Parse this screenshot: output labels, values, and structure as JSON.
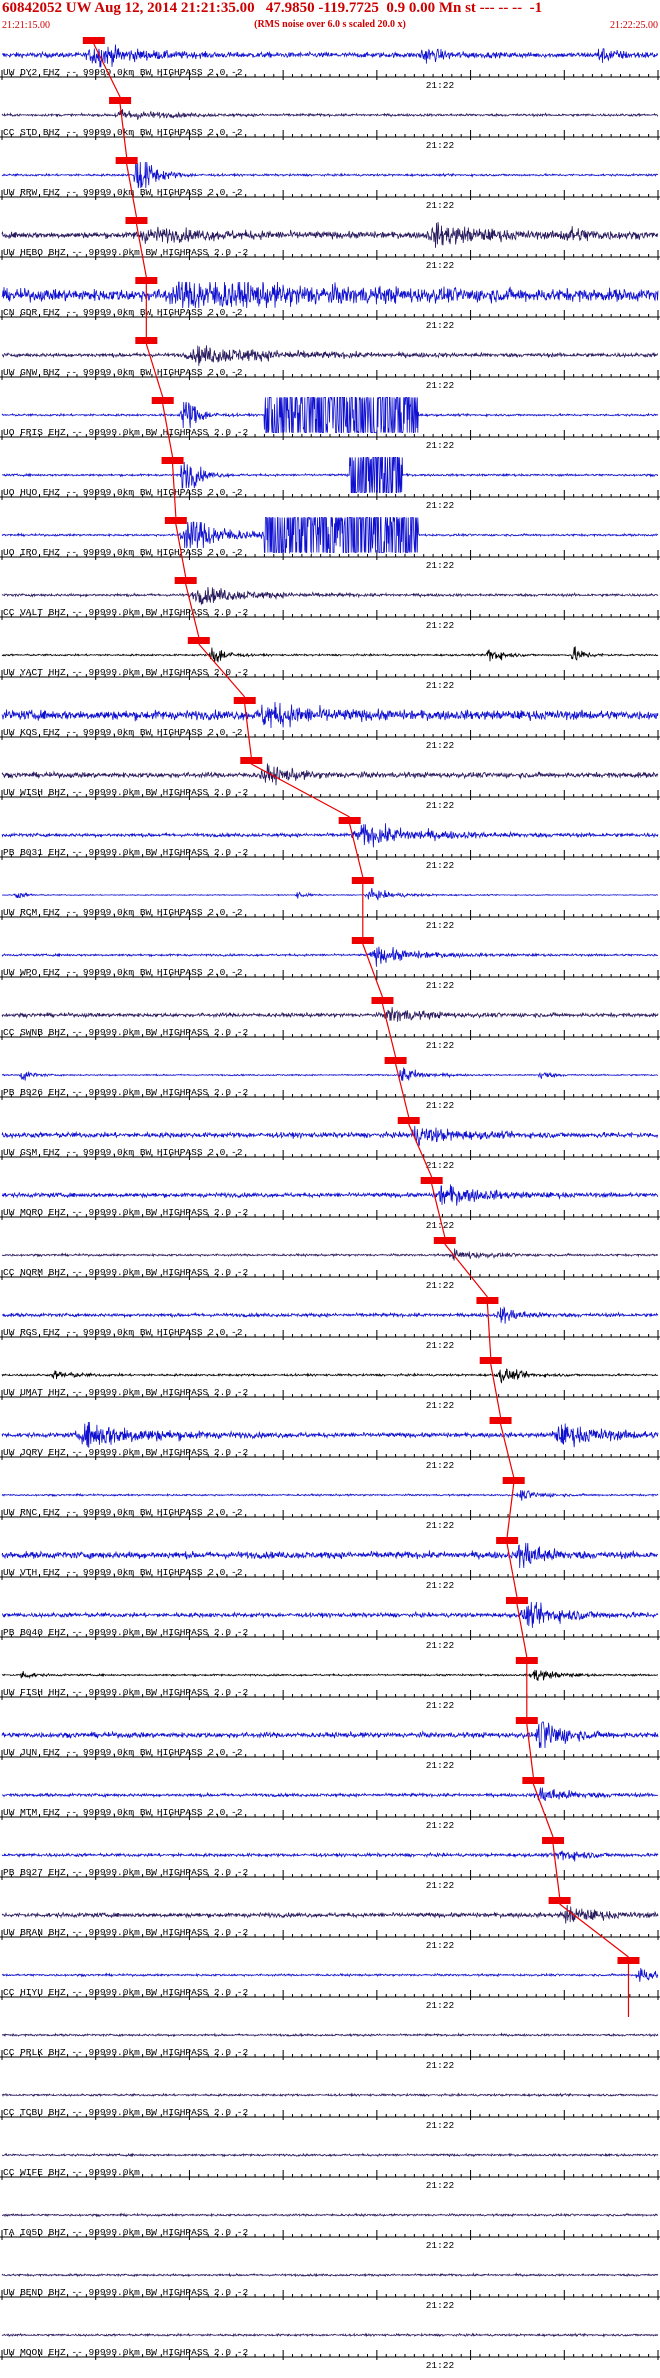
{
  "header": {
    "title": "60842052 UW Aug 12, 2014 21:21:35.00   47.9850 -119.7725  0.9 0.00 Mn st --- -- --  -1",
    "subtitle": "(RMS noise over 6.0 s scaled 20.0 x)",
    "start_time": "21:21:15.00",
    "end_time": "21:22:25.00"
  },
  "chart_data": {
    "type": "seismogram",
    "time_range": [
      "21:21:15.00",
      "21:22:25.00"
    ],
    "mid_tick_label": "21:22",
    "traces": [
      {
        "label": "UW DY2 EHZ -- 99999.0km BW  HIGHPASS  2.0 -2",
        "color": "#1010d0",
        "amp": 0.3,
        "events": [
          [
            0.14,
            0.04,
            1.3
          ],
          [
            0.64,
            0.02,
            0.9
          ],
          [
            0.91,
            0.02,
            0.8
          ]
        ],
        "pick": 0.14
      },
      {
        "label": "CC STD BHZ -- 99999.0km BW  HIGHPASS  2.0 -2",
        "color": "#2a1a5e",
        "amp": 0.14,
        "events": [
          [
            0.18,
            0.04,
            0.6
          ]
        ],
        "pick": 0.18
      },
      {
        "label": "UW RRW EHZ -- 99999.0km BW  HIGHPASS  2.0 -2",
        "color": "#1010d0",
        "amp": 0.12,
        "events": [
          [
            0.205,
            0.015,
            3.5
          ]
        ],
        "pick": 0.19
      },
      {
        "label": "UW HEBO BHZ -- 99999.0km BW  HIGHPASS  2.0 -2",
        "color": "#2a1a5e",
        "amp": 0.35,
        "events": [
          [
            0.22,
            0.08,
            0.7
          ],
          [
            0.66,
            0.05,
            1.2
          ],
          [
            0.86,
            0.03,
            0.8
          ]
        ],
        "pick": 0.205
      },
      {
        "label": "CN GDR EHZ -- 99999.0km BW  HIGHPASS  2.0 -2",
        "color": "#1010d0",
        "amp": 0.7,
        "events": [
          [
            0.28,
            0.12,
            1.6
          ]
        ],
        "pick": 0.22
      },
      {
        "label": "UW GNW BHZ -- 99999.0km BW  HIGHPASS  2.0 -2",
        "color": "#2a1a5e",
        "amp": 0.22,
        "events": [
          [
            0.3,
            0.08,
            1.0
          ]
        ],
        "pick": 0.22
      },
      {
        "label": "UO FRIS EHZ -- 99999.0km BW  HIGHPASS  2.0 -2",
        "color": "#1010d0",
        "amp": 0.12,
        "events": [
          [
            0.275,
            0.012,
            3.5
          ]
        ],
        "pick": 0.245,
        "clip": [
          0.4,
          0.635
        ]
      },
      {
        "label": "UO HUO EHZ -- 99999.0km BW  HIGHPASS  2.0 -2",
        "color": "#1010d0",
        "amp": 0.12,
        "events": [
          [
            0.275,
            0.012,
            3.5
          ]
        ],
        "pick": 0.26,
        "clip": [
          0.53,
          0.61
        ]
      },
      {
        "label": "UO IRO EHZ -- 99999.0km BW  HIGHPASS  2.0 -2",
        "color": "#1010d0",
        "amp": 0.12,
        "events": [
          [
            0.28,
            0.03,
            3.0
          ]
        ],
        "pick": 0.265,
        "clip": [
          0.4,
          0.635
        ]
      },
      {
        "label": "CC VALT BHZ -- 99999.0km BW  HIGHPASS  2.0 -2",
        "color": "#2a1a5e",
        "amp": 0.15,
        "events": [
          [
            0.3,
            0.05,
            1.0
          ]
        ],
        "pick": 0.28
      },
      {
        "label": "UW YACT HHZ -- 99999.0km BW  HIGHPASS  2.0 -2",
        "color": "#000000",
        "amp": 0.1,
        "events": [
          [
            0.32,
            0.012,
            1.6
          ],
          [
            0.74,
            0.012,
            1.3
          ],
          [
            0.87,
            0.012,
            1.0
          ]
        ],
        "pick": 0.3
      },
      {
        "label": "UW KOS EHZ -- 99999.0km BW  HIGHPASS  2.0 -2",
        "color": "#1010d0",
        "amp": 0.55,
        "events": [
          [
            0.4,
            0.04,
            1.4
          ]
        ],
        "pick": 0.37
      },
      {
        "label": "UW WISH BHZ -- 99999.0km BW  HIGHPASS  2.0 -2",
        "color": "#2a1a5e",
        "amp": 0.3,
        "events": [
          [
            0.4,
            0.03,
            1.0
          ]
        ],
        "pick": 0.38
      },
      {
        "label": "PB B031 EHZ -- 99999.0km BW  HIGHPASS  2.0 -2",
        "color": "#1010d0",
        "amp": 0.2,
        "events": [
          [
            0.55,
            0.06,
            1.2
          ]
        ],
        "pick": 0.53
      },
      {
        "label": "UW RCM EHZ -- 99999.0km BW  HIGHPASS  2.0 -2",
        "color": "#1010d0",
        "amp": 0.05,
        "events": [
          [
            0.56,
            0.03,
            0.6
          ],
          [
            0.02,
            0.01,
            0.5
          ],
          [
            0.45,
            0.01,
            0.4
          ]
        ],
        "pick": 0.55
      },
      {
        "label": "UW WPO EHZ -- 99999.0km BW  HIGHPASS  2.0 -2",
        "color": "#1010d0",
        "amp": 0.12,
        "events": [
          [
            0.57,
            0.04,
            1.0
          ]
        ],
        "pick": 0.55
      },
      {
        "label": "CC SWNB BHZ -- 99999.0km BW  HIGHPASS  2.0 -2",
        "color": "#2a1a5e",
        "amp": 0.22,
        "events": [
          [
            0.59,
            0.03,
            0.9
          ]
        ],
        "pick": 0.58
      },
      {
        "label": "PB B926 EHZ -- 99999.0km BW  HIGHPASS  2.0 -2",
        "color": "#1010d0",
        "amp": 0.08,
        "events": [
          [
            0.61,
            0.02,
            1.0
          ],
          [
            0.03,
            0.01,
            0.8
          ],
          [
            0.82,
            0.01,
            0.6
          ]
        ],
        "pick": 0.6
      },
      {
        "label": "UW GSM EHZ -- 99999.0km BW  HIGHPASS  2.0 -2",
        "color": "#1010d0",
        "amp": 0.3,
        "events": [
          [
            0.63,
            0.04,
            1.0
          ]
        ],
        "pick": 0.62
      },
      {
        "label": "UW MORO EHZ -- 99999.0km BW  HIGHPASS  2.0 -2",
        "color": "#1010d0",
        "amp": 0.25,
        "events": [
          [
            0.67,
            0.04,
            1.2
          ]
        ],
        "pick": 0.655
      },
      {
        "label": "CC NORM BHZ -- 99999.0km BW  HIGHPASS  2.0 -2",
        "color": "#2a1a5e",
        "amp": 0.12,
        "events": [
          [
            0.69,
            0.03,
            0.6
          ]
        ],
        "pick": 0.675
      },
      {
        "label": "UW RGS EHZ -- 99999.0km BW  HIGHPASS  2.0 -2",
        "color": "#1010d0",
        "amp": 0.2,
        "events": [
          [
            0.76,
            0.02,
            1.0
          ]
        ],
        "pick": 0.74
      },
      {
        "label": "UW UMAT HHZ -- 99999.0km BW  HIGHPASS  2.0 -2",
        "color": "#000000",
        "amp": 0.12,
        "events": [
          [
            0.76,
            0.02,
            0.9
          ],
          [
            0.08,
            0.02,
            0.5
          ]
        ],
        "pick": 0.745
      },
      {
        "label": "UW JORV EHZ -- 99999.0km BW  HIGHPASS  2.0 -2",
        "color": "#1010d0",
        "amp": 0.25,
        "events": [
          [
            0.13,
            0.06,
            1.5
          ],
          [
            0.85,
            0.05,
            1.2
          ]
        ],
        "pick": 0.76
      },
      {
        "label": "UW RNC EHZ -- 99999.0km BW  HIGHPASS  2.0 -2",
        "color": "#1010d0",
        "amp": 0.1,
        "events": [
          [
            0.79,
            0.02,
            0.6
          ]
        ],
        "pick": 0.78
      },
      {
        "label": "UW VTH EHZ -- 99999.0km BW  HIGHPASS  2.0 -2",
        "color": "#1010d0",
        "amp": 0.4,
        "events": [
          [
            0.79,
            0.02,
            2.0
          ]
        ],
        "pick": 0.77
      },
      {
        "label": "PB B040 EHZ -- 99999.0km BW  HIGHPASS  2.0 -2",
        "color": "#1010d0",
        "amp": 0.25,
        "events": [
          [
            0.8,
            0.04,
            1.3
          ]
        ],
        "pick": 0.785
      },
      {
        "label": "UW FISH HHZ -- 99999.0km BW  HIGHPASS  2.0 -2",
        "color": "#000000",
        "amp": 0.1,
        "events": [
          [
            0.81,
            0.02,
            0.9
          ],
          [
            0.03,
            0.01,
            0.6
          ]
        ],
        "pick": 0.8
      },
      {
        "label": "UW JUN EHZ -- 99999.0km BW  HIGHPASS  2.0 -2",
        "color": "#1010d0",
        "amp": 0.3,
        "events": [
          [
            0.82,
            0.02,
            2.5
          ]
        ],
        "pick": 0.8
      },
      {
        "label": "UW MTM EHZ -- 99999.0km BW  HIGHPASS  2.0 -2",
        "color": "#1010d0",
        "amp": 0.18,
        "events": [
          [
            0.82,
            0.03,
            1.0
          ]
        ],
        "pick": 0.81
      },
      {
        "label": "PB B927 EHZ -- 99999.0km BW  HIGHPASS  2.0 -2",
        "color": "#1010d0",
        "amp": 0.18,
        "events": [
          [
            0.85,
            0.02,
            0.9
          ]
        ],
        "pick": 0.84
      },
      {
        "label": "UW BRAN BHZ -- 99999.0km BW  HIGHPASS  2.0 -2",
        "color": "#2a1a5e",
        "amp": 0.25,
        "events": [
          [
            0.86,
            0.03,
            1.0
          ]
        ],
        "pick": 0.85
      },
      {
        "label": "CC HIYU EHZ -- 99999.0km BW  HIGHPASS  2.0 -2",
        "color": "#1010d0",
        "amp": 0.12,
        "events": [
          [
            0.97,
            0.02,
            1.0
          ]
        ],
        "pick": 0.955
      },
      {
        "label": "CC PRLK BHZ -- 99999.0km BW  HIGHPASS  2.0 -2",
        "color": "#2a1a5e",
        "amp": 0.12,
        "events": []
      },
      {
        "label": "CC TCBU BHZ -- 99999.0km BW  HIGHPASS  2.0 -2",
        "color": "#2a1a5e",
        "amp": 0.12,
        "events": []
      },
      {
        "label": "CC WIFE BHZ -- 99999.0km",
        "color": "#2a1a5e",
        "amp": 0.12,
        "events": []
      },
      {
        "label": "TA I05D BHZ -- 99999.0km BW  HIGHPASS  2.0 -2",
        "color": "#2a1a5e",
        "amp": 0.12,
        "events": []
      },
      {
        "label": "UW BEND BHZ -- 99999.0km BW  HIGHPASS  2.0 -2",
        "color": "#2a1a5e",
        "amp": 0.12,
        "events": []
      },
      {
        "label": "UW MOON EHZ -- 99999.0km BW  HIGHPASS  2.0 -2",
        "color": "#2a1a5e",
        "amp": 0.12,
        "events": []
      }
    ]
  },
  "colors": {
    "header_text": "#cc0000",
    "pick_marker": "#ee0000",
    "axis": "#000000"
  }
}
